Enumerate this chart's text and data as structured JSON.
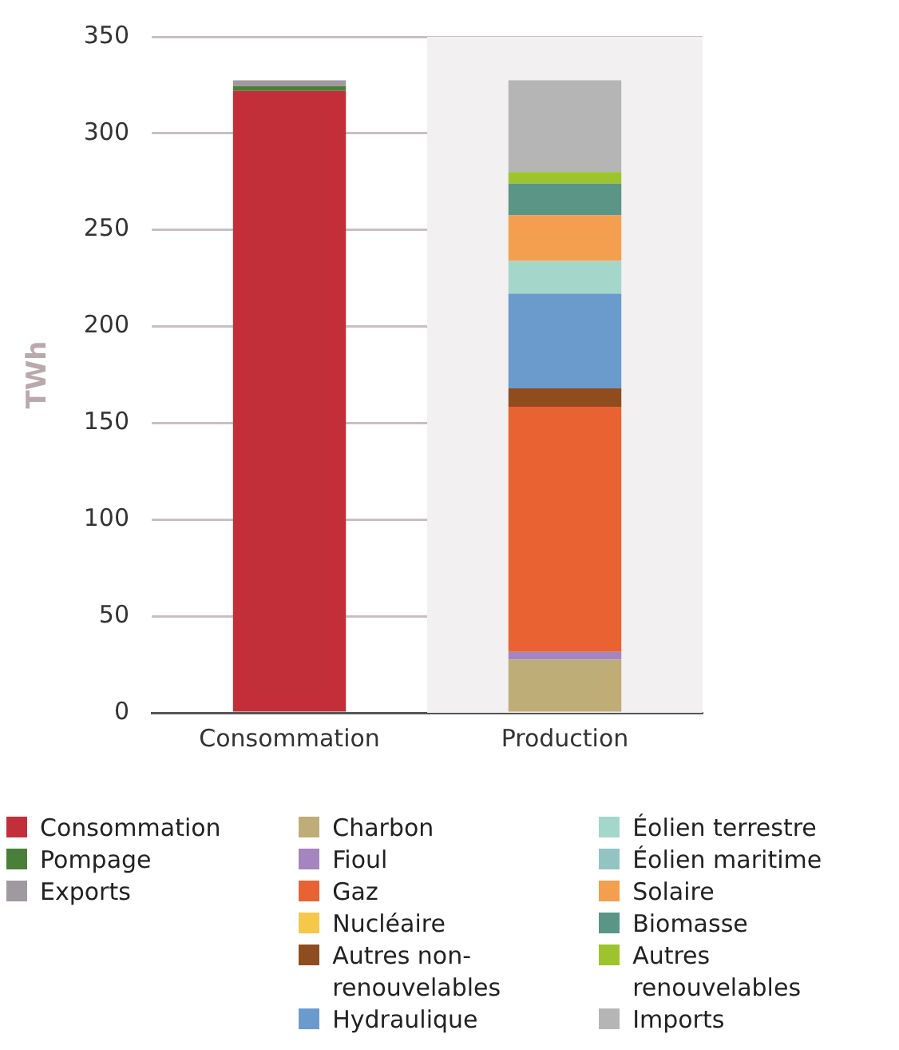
{
  "chart_data": {
    "type": "bar",
    "stacked": true,
    "ylabel": "TWh",
    "categories": [
      "Consommation",
      "Production"
    ],
    "ylim": [
      0,
      350
    ],
    "yticks": [
      0,
      50,
      100,
      150,
      200,
      250,
      300,
      350
    ],
    "grid": "y",
    "legend": "bottom",
    "bands": [
      {
        "axis": "x",
        "from": "Production",
        "to": "Production",
        "color": "#f2f0f0"
      }
    ],
    "series": [
      {
        "name": "Consommation",
        "color": "#c32f38",
        "values": [
          322,
          null
        ]
      },
      {
        "name": "Pompage",
        "color": "#4a7f3a",
        "values": [
          2.5,
          null
        ]
      },
      {
        "name": "Exports",
        "color": "#a09aa0",
        "values": [
          3,
          null
        ]
      },
      {
        "name": "Charbon",
        "color": "#bfad78",
        "values": [
          null,
          27.5
        ]
      },
      {
        "name": "Fioul",
        "color": "#a485bf",
        "values": [
          null,
          4
        ]
      },
      {
        "name": "Gaz",
        "color": "#e96332",
        "values": [
          null,
          127
        ]
      },
      {
        "name": "Nucléaire",
        "color": "#f5c84a",
        "values": [
          null,
          0
        ]
      },
      {
        "name": "Autres non-renouvelables",
        "color": "#8f4d1f",
        "values": [
          null,
          9.5
        ]
      },
      {
        "name": "Hydraulique",
        "color": "#6b9bcc",
        "values": [
          null,
          49
        ]
      },
      {
        "name": "Éolien terrestre",
        "color": "#a4d6ca",
        "values": [
          null,
          17
        ]
      },
      {
        "name": "Éolien maritime",
        "color": "#93c4c2",
        "values": [
          null,
          0
        ]
      },
      {
        "name": "Solaire",
        "color": "#f39f4f",
        "values": [
          null,
          23.5
        ]
      },
      {
        "name": "Biomasse",
        "color": "#5a9585",
        "values": [
          null,
          16.5
        ]
      },
      {
        "name": "Autres renouvelables",
        "color": "#9dc42d",
        "values": [
          null,
          6
        ]
      },
      {
        "name": "Imports",
        "color": "#b5b5b5",
        "values": [
          null,
          47.5
        ]
      }
    ]
  }
}
